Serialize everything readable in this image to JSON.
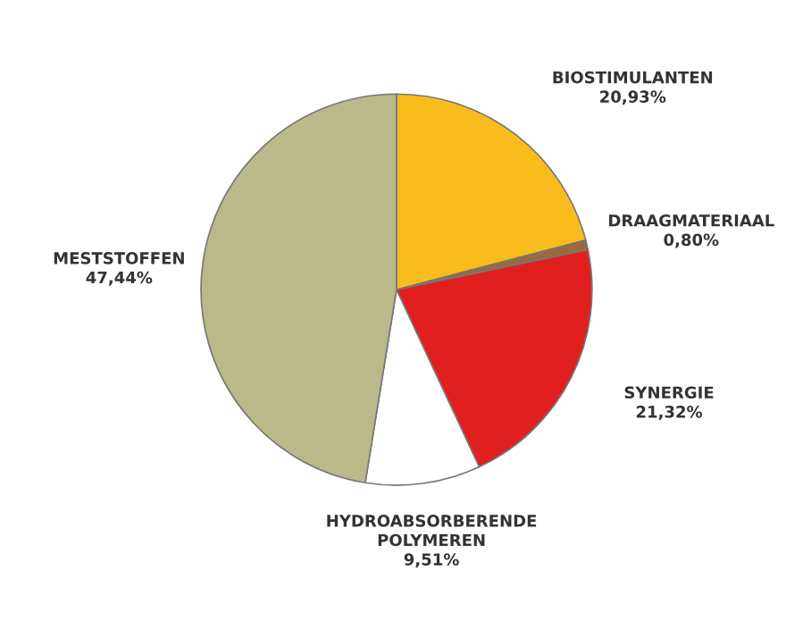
{
  "chart_data": {
    "type": "pie",
    "categories": [
      "BIOSTIMULANTEN",
      "DRAAGMATERIAAL",
      "SYNERGIE",
      "HYDROABSORBERENDE\nPOLYMEREN",
      "MESTSTOFFEN"
    ],
    "values": [
      20.93,
      0.8,
      21.32,
      9.51,
      47.44
    ],
    "value_labels": [
      "20,93%",
      "0,80%",
      "21,32%",
      "9,51%",
      "47,44%"
    ],
    "colors": [
      "#f8bd1c",
      "#9a6a3a",
      "#e21f1f",
      "#ffffff",
      "#b9b98a"
    ]
  }
}
